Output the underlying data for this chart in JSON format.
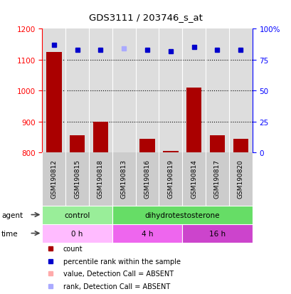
{
  "title": "GDS3111 / 203746_s_at",
  "samples": [
    "GSM190812",
    "GSM190815",
    "GSM190818",
    "GSM190813",
    "GSM190816",
    "GSM190819",
    "GSM190814",
    "GSM190817",
    "GSM190820"
  ],
  "bar_values": [
    1125,
    855,
    900,
    800,
    845,
    805,
    1010,
    855,
    845
  ],
  "bar_absent": [
    false,
    false,
    false,
    true,
    false,
    false,
    false,
    false,
    false
  ],
  "rank_values": [
    87,
    83,
    83,
    84,
    83,
    82,
    85,
    83,
    83
  ],
  "rank_absent": [
    false,
    false,
    false,
    true,
    false,
    false,
    false,
    false,
    false
  ],
  "bar_color_present": "#aa0000",
  "bar_color_absent": "#ffaaaa",
  "rank_color_present": "#0000cc",
  "rank_color_absent": "#aaaaff",
  "ylim_left": [
    800,
    1200
  ],
  "ylim_right": [
    0,
    100
  ],
  "yticks_left": [
    800,
    900,
    1000,
    1100,
    1200
  ],
  "yticks_right": [
    0,
    25,
    50,
    75,
    100
  ],
  "yticklabels_right": [
    "0",
    "25",
    "50",
    "75",
    "100%"
  ],
  "agent_groups": [
    {
      "label": "control",
      "start": 0,
      "end": 3,
      "color": "#99ee99"
    },
    {
      "label": "dihydrotestosterone",
      "start": 3,
      "end": 9,
      "color": "#66dd66"
    }
  ],
  "time_groups": [
    {
      "label": "0 h",
      "start": 0,
      "end": 3,
      "color": "#ffbbff"
    },
    {
      "label": "4 h",
      "start": 3,
      "end": 6,
      "color": "#ee66ee"
    },
    {
      "label": "16 h",
      "start": 6,
      "end": 9,
      "color": "#cc44cc"
    }
  ],
  "legend_items": [
    {
      "label": "count",
      "color": "#aa0000"
    },
    {
      "label": "percentile rank within the sample",
      "color": "#0000cc"
    },
    {
      "label": "value, Detection Call = ABSENT",
      "color": "#ffaaaa"
    },
    {
      "label": "rank, Detection Call = ABSENT",
      "color": "#aaaaff"
    }
  ],
  "background_color": "#ffffff",
  "plot_bg_color": "#dddddd",
  "label_bg_color": "#cccccc"
}
